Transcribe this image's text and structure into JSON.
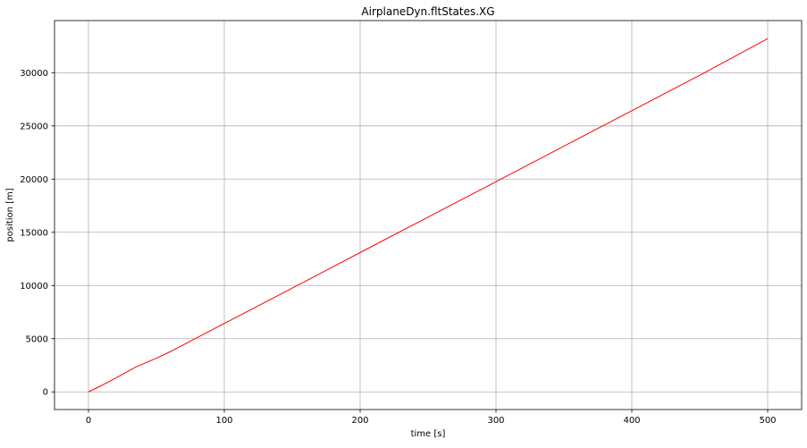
{
  "chart_data": {
    "type": "line",
    "title": "AirplaneDyn.fltStates.XG",
    "xlabel": "time [s]",
    "ylabel": "position [m]",
    "xlim": [
      -25,
      525
    ],
    "ylim": [
      -1660,
      34900
    ],
    "xticks": [
      0,
      100,
      200,
      300,
      400,
      500
    ],
    "xtick_labels": [
      "0",
      "100",
      "200",
      "300",
      "400",
      "500"
    ],
    "yticks": [
      0,
      5000,
      10000,
      15000,
      20000,
      25000,
      30000
    ],
    "ytick_labels": [
      "0",
      "5000",
      "10000",
      "15000",
      "20000",
      "25000",
      "30000"
    ],
    "grid": true,
    "series": [
      {
        "name": "AirplaneDyn.fltStates.XG",
        "color": "#ff0000",
        "x": [
          0,
          10,
          20,
          30,
          35,
          40,
          50,
          60,
          80,
          100,
          150,
          200,
          250,
          300,
          350,
          400,
          450,
          500
        ],
        "y": [
          0,
          620,
          1300,
          2000,
          2350,
          2620,
          3170,
          3770,
          5100,
          6430,
          9750,
          13100,
          16430,
          19760,
          23100,
          26430,
          29760,
          33200
        ]
      }
    ]
  }
}
